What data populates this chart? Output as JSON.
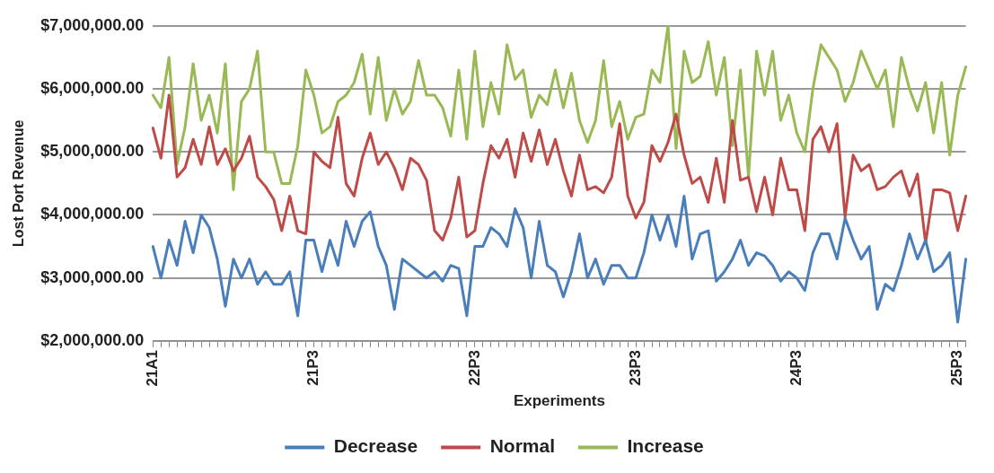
{
  "chart_data": {
    "type": "line",
    "xlabel": "Experiments",
    "ylabel": "Lost Port Revenue",
    "categories": [
      "21A1",
      null,
      null,
      null,
      null,
      null,
      null,
      null,
      null,
      null,
      null,
      null,
      null,
      null,
      null,
      null,
      null,
      null,
      null,
      null,
      "21P3",
      null,
      null,
      null,
      null,
      null,
      null,
      null,
      null,
      null,
      null,
      null,
      null,
      null,
      null,
      null,
      null,
      null,
      null,
      null,
      "22P3",
      null,
      null,
      null,
      null,
      null,
      null,
      null,
      null,
      null,
      null,
      null,
      null,
      null,
      null,
      null,
      null,
      null,
      null,
      null,
      "23P3",
      null,
      null,
      null,
      null,
      null,
      null,
      null,
      null,
      null,
      null,
      null,
      null,
      null,
      null,
      null,
      null,
      null,
      null,
      null,
      "24P3",
      null,
      null,
      null,
      null,
      null,
      null,
      null,
      null,
      null,
      null,
      null,
      null,
      null,
      null,
      null,
      null,
      null,
      null,
      null,
      "25P3",
      null
    ],
    "series": [
      {
        "name": "Decrease",
        "color": "#4a7ebb",
        "values": [
          3500000,
          3000000,
          3600000,
          3200000,
          3900000,
          3400000,
          4000000,
          3800000,
          3300000,
          2550000,
          3300000,
          3000000,
          3300000,
          2900000,
          3100000,
          2900000,
          2900000,
          3100000,
          2400000,
          3600000,
          3600000,
          3100000,
          3600000,
          3200000,
          3900000,
          3500000,
          3900000,
          4050000,
          3500000,
          3200000,
          2500000,
          3300000,
          3200000,
          3100000,
          3000000,
          3100000,
          2950000,
          3200000,
          3150000,
          2400000,
          3500000,
          3500000,
          3800000,
          3700000,
          3500000,
          4100000,
          3800000,
          3000000,
          3900000,
          3200000,
          3100000,
          2700000,
          3100000,
          3700000,
          3000000,
          3300000,
          2900000,
          3200000,
          3200000,
          3000000,
          3000000,
          3400000,
          4000000,
          3600000,
          4000000,
          3500000,
          4300000,
          3300000,
          3700000,
          3750000,
          2950000,
          3100000,
          3300000,
          3600000,
          3200000,
          3400000,
          3350000,
          3200000,
          2950000,
          3100000,
          3000000,
          2800000,
          3400000,
          3700000,
          3700000,
          3300000,
          3950000,
          3600000,
          3300000,
          3500000,
          2500000,
          2900000,
          2800000,
          3200000,
          3700000,
          3300000,
          3600000,
          3100000,
          3200000,
          3400000,
          2300000,
          3300000
        ]
      },
      {
        "name": "Normal",
        "color": "#be4b48",
        "values": [
          5380000,
          4900000,
          5900000,
          4600000,
          4750000,
          5200000,
          4800000,
          5400000,
          4800000,
          5050000,
          4700000,
          4900000,
          5250000,
          4600000,
          4450000,
          4250000,
          3750000,
          4300000,
          3750000,
          3700000,
          5000000,
          4850000,
          4750000,
          5550000,
          4500000,
          4300000,
          4900000,
          5300000,
          4800000,
          5000000,
          4750000,
          4400000,
          4900000,
          4800000,
          4550000,
          3750000,
          3600000,
          3950000,
          4600000,
          3650000,
          3750000,
          4500000,
          5100000,
          4900000,
          5200000,
          4600000,
          5300000,
          4850000,
          5350000,
          4800000,
          5200000,
          4700000,
          4300000,
          4950000,
          4400000,
          4450000,
          4350000,
          4600000,
          5450000,
          4300000,
          3950000,
          4200000,
          5100000,
          4850000,
          5150000,
          5600000,
          4950000,
          4500000,
          4600000,
          4200000,
          4900000,
          4200000,
          5500000,
          4550000,
          4600000,
          4050000,
          4600000,
          4000000,
          4900000,
          4400000,
          4400000,
          3750000,
          5200000,
          5400000,
          5000000,
          5450000,
          3970000,
          4950000,
          4700000,
          4800000,
          4400000,
          4450000,
          4600000,
          4700000,
          4300000,
          4650000,
          3550000,
          4400000,
          4400000,
          4350000,
          3750000,
          4300000
        ]
      },
      {
        "name": "Increase",
        "color": "#98b954",
        "values": [
          5900000,
          5700000,
          6500000,
          4800000,
          5400000,
          6400000,
          5500000,
          5900000,
          5300000,
          6400000,
          4400000,
          5800000,
          6000000,
          6600000,
          5000000,
          5000000,
          4500000,
          4500000,
          5100000,
          6300000,
          5900000,
          5300000,
          5400000,
          5800000,
          5900000,
          6100000,
          6550000,
          5600000,
          6500000,
          5500000,
          6000000,
          5600000,
          5800000,
          6450000,
          5900000,
          5900000,
          5700000,
          5250000,
          6300000,
          5200000,
          6600000,
          5400000,
          6100000,
          5600000,
          6700000,
          6150000,
          6300000,
          5550000,
          5900000,
          5750000,
          6300000,
          5700000,
          6250000,
          5500000,
          5150000,
          5500000,
          6450000,
          5400000,
          5800000,
          5200000,
          5550000,
          5600000,
          6300000,
          6100000,
          7000000,
          5050000,
          6600000,
          6100000,
          6200000,
          6750000,
          5900000,
          6500000,
          5100000,
          6300000,
          4600000,
          6600000,
          5900000,
          6600000,
          5500000,
          5900000,
          5300000,
          5000000,
          6000000,
          6700000,
          6500000,
          6300000,
          5800000,
          6100000,
          6600000,
          6300000,
          6000000,
          6300000,
          5400000,
          6500000,
          6000000,
          5650000,
          6100000,
          5300000,
          6100000,
          4950000,
          5900000,
          6350000
        ]
      }
    ],
    "ylim": [
      2000000,
      7000000
    ],
    "yticks": [
      {
        "value": 2000000,
        "label": "$2,000,000.00"
      },
      {
        "value": 3000000,
        "label": "$3,000,000.00"
      },
      {
        "value": 4000000,
        "label": "$4,000,000.00"
      },
      {
        "value": 5000000,
        "label": "$5,000,000.00"
      },
      {
        "value": 6000000,
        "label": "$6,000,000.00"
      },
      {
        "value": 7000000,
        "label": "$7,000,000.00"
      }
    ],
    "grid": "y",
    "legend": "bottom",
    "marker": "none",
    "line_style": "solid"
  }
}
